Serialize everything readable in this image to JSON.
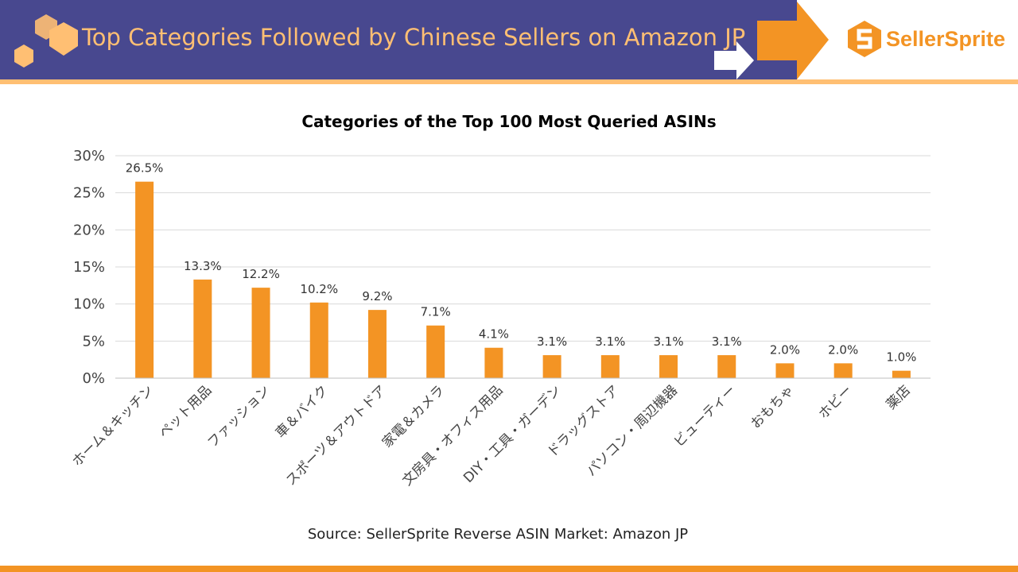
{
  "header": {
    "title": "Top Categories Followed by Chinese Sellers on Amazon JP",
    "logo": "SellerSprite"
  },
  "colors": {
    "banner": "#48488f",
    "accent": "#f39424",
    "light_accent": "#ffbf73",
    "bar": "#f39424"
  },
  "chart_data": {
    "type": "bar",
    "title": "Categories of the Top 100 Most Queried ASINs",
    "categories": [
      "ホーム＆キッチン",
      "ペット用品",
      "ファッション",
      "車＆バイク",
      "スポーツ＆アウトドア",
      "家電＆カメラ",
      "文房具・オフィス用品",
      "DIY・工具・ガーデン",
      "ドラッグストア",
      "パソコン・周辺機器",
      "ビューティー",
      "おもちゃ",
      "ホビー",
      "薬店"
    ],
    "values": [
      26.5,
      13.3,
      12.2,
      10.2,
      9.2,
      7.1,
      4.1,
      3.1,
      3.1,
      3.1,
      3.1,
      2.0,
      2.0,
      1.0
    ],
    "data_labels": [
      "26.5%",
      "13.3%",
      "12.2%",
      "10.2%",
      "9.2%",
      "7.1%",
      "4.1%",
      "3.1%",
      "3.1%",
      "3.1%",
      "3.1%",
      "2.0%",
      "2.0%",
      "1.0%"
    ],
    "yticks": [
      "0%",
      "5%",
      "10%",
      "15%",
      "20%",
      "25%",
      "30%"
    ],
    "ylim": [
      0,
      30
    ],
    "grid": true,
    "legend": "none"
  },
  "footer": {
    "source": "Source: SellerSprite Reverse ASIN  Market: Amazon JP"
  }
}
